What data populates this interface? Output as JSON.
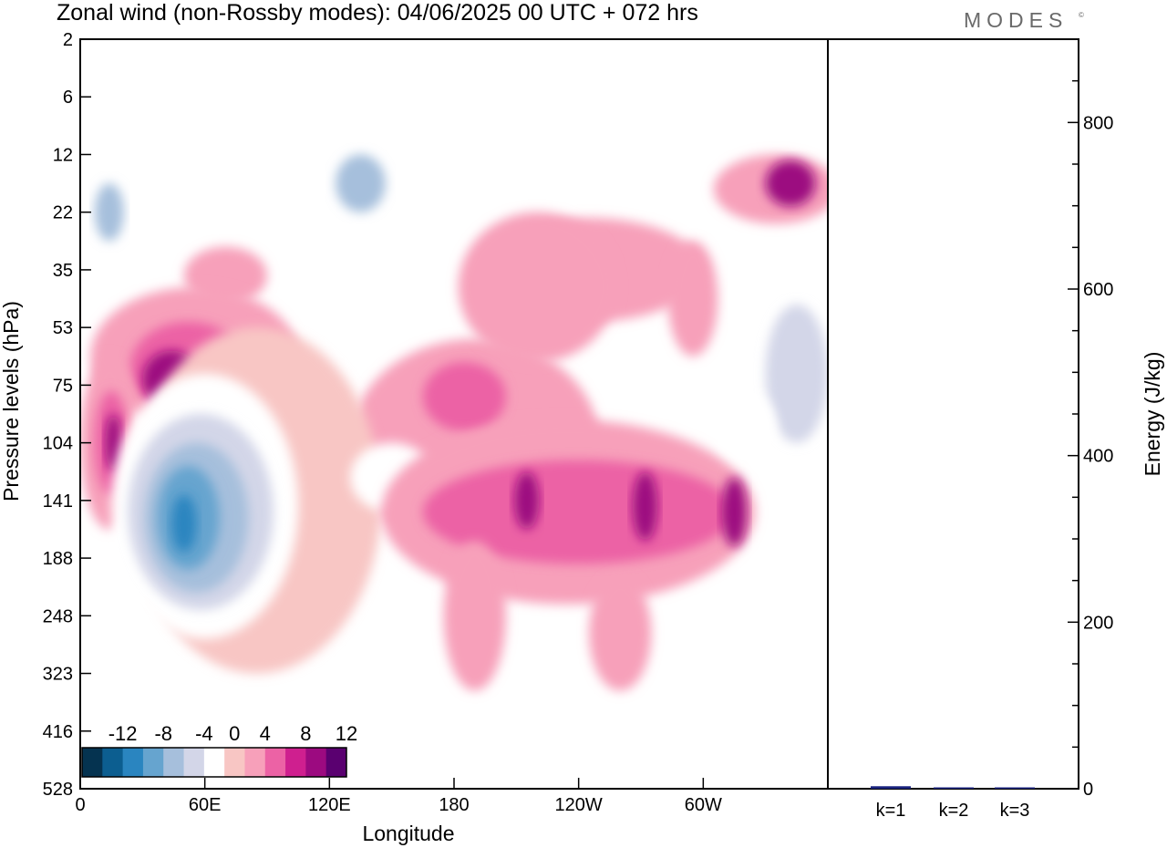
{
  "title": "Zonal wind (non-Rossby modes):  04/06/2025  00 UTC  + 072 hrs",
  "brand": "MODES",
  "brand_mark": "©",
  "chart_data": [
    {
      "type": "heatmap",
      "title": "Zonal wind (non-Rossby modes):  04/06/2025  00 UTC  + 072 hrs",
      "xlabel": "Longitude",
      "ylabel": "Pressure levels (hPa)",
      "x_ticks": [
        "0",
        "60E",
        "120E",
        "180",
        "120W",
        "60W"
      ],
      "x_tick_degrees": [
        0,
        60,
        120,
        180,
        240,
        300
      ],
      "xlim": [
        0,
        360
      ],
      "y_ticks": [
        "2",
        "6",
        "12",
        "22",
        "35",
        "53",
        "75",
        "104",
        "141",
        "188",
        "248",
        "323",
        "416",
        "528"
      ],
      "colorbar": {
        "labels": [
          "-12",
          "-8",
          "-4",
          "0",
          "4",
          "8",
          "12"
        ],
        "label_values": [
          -12,
          -8,
          -4,
          0,
          4,
          8,
          12
        ],
        "levels": [
          -14,
          -12,
          -10,
          -8,
          -6,
          -4,
          -2,
          2,
          4,
          6,
          8,
          10,
          12,
          14
        ],
        "colors": [
          "#053350",
          "#0c5e90",
          "#2a85c0",
          "#66a4cf",
          "#a6bfdc",
          "#d3d6e8",
          "#ffffff",
          "#f8c6c4",
          "#f7a0ba",
          "#ec62a5",
          "#cf1f8f",
          "#9c0a80",
          "#5a0070"
        ]
      },
      "regions": [
        {
          "lon": 15,
          "lev": 2.9,
          "rx": 12,
          "ry": 0.9,
          "value": -4
        },
        {
          "lon": 14,
          "lev": 3.0,
          "rx": 7,
          "ry": 0.5,
          "value": -8
        },
        {
          "lon": 55,
          "lev": 2.2,
          "rx": 10,
          "ry": 0.6,
          "value": -4
        },
        {
          "lon": 135,
          "lev": 2.5,
          "rx": 25,
          "ry": 0.9,
          "value": -4
        },
        {
          "lon": 135,
          "lev": 2.5,
          "rx": 12,
          "ry": 0.5,
          "value": -8
        },
        {
          "lon": 237,
          "lev": 2.6,
          "rx": 20,
          "ry": 0.7,
          "value": -4
        },
        {
          "lon": 335,
          "lev": 6.0,
          "rx": 40,
          "ry": 1.6,
          "value": -4
        },
        {
          "lon": 345,
          "lev": 5.8,
          "rx": 15,
          "ry": 1.2,
          "value": -6
        },
        {
          "lon": 190,
          "lev": 7.0,
          "rx": 60,
          "ry": 1.8,
          "value": 2
        },
        {
          "lon": 185,
          "lev": 6.2,
          "rx": 20,
          "ry": 0.6,
          "value": 4
        },
        {
          "lon": 245,
          "lev": 4.0,
          "rx": 55,
          "ry": 0.9,
          "value": 2
        },
        {
          "lon": 335,
          "lev": 2.6,
          "rx": 30,
          "ry": 0.6,
          "value": 2
        },
        {
          "lon": 342,
          "lev": 2.5,
          "rx": 12,
          "ry": 0.4,
          "value": 8
        },
        {
          "lon": 70,
          "lev": 4.1,
          "rx": 20,
          "ry": 0.5,
          "value": 2
        },
        {
          "lon": 220,
          "lev": 4.3,
          "rx": 38,
          "ry": 1.3,
          "value": 2
        },
        {
          "lon": 295,
          "lev": 4.5,
          "rx": 12,
          "ry": 1.0,
          "value": 2
        },
        {
          "lon": 55,
          "lev": 5.5,
          "rx": 50,
          "ry": 1.2,
          "value": 2
        },
        {
          "lon": 52,
          "lev": 5.7,
          "rx": 28,
          "ry": 0.8,
          "value": 4
        },
        {
          "lon": 44,
          "lev": 5.9,
          "rx": 14,
          "ry": 0.5,
          "value": 8
        },
        {
          "lon": 14,
          "lev": 7.0,
          "rx": 14,
          "ry": 1.5,
          "value": 2
        },
        {
          "lon": 15,
          "lev": 7.0,
          "rx": 8,
          "ry": 0.9,
          "value": 4
        },
        {
          "lon": 16,
          "lev": 7.0,
          "rx": 4,
          "ry": 0.5,
          "value": 8
        },
        {
          "lon": 85,
          "lev": 8.0,
          "rx": 60,
          "ry": 3.0,
          "value": -2
        },
        {
          "lon": 60,
          "lev": 8.1,
          "rx": 45,
          "ry": 2.3,
          "value": -4
        },
        {
          "lon": 58,
          "lev": 8.2,
          "rx": 35,
          "ry": 1.7,
          "value": -6
        },
        {
          "lon": 56,
          "lev": 8.3,
          "rx": 25,
          "ry": 1.3,
          "value": -8
        },
        {
          "lon": 52,
          "lev": 8.3,
          "rx": 15,
          "ry": 0.9,
          "value": -10
        },
        {
          "lon": 50,
          "lev": 8.4,
          "rx": 6,
          "ry": 0.5,
          "value": -12
        },
        {
          "lon": 150,
          "lev": 7.6,
          "rx": 20,
          "ry": 0.6,
          "value": -4
        },
        {
          "lon": 235,
          "lev": 8.2,
          "rx": 90,
          "ry": 1.6,
          "value": 2
        },
        {
          "lon": 240,
          "lev": 8.2,
          "rx": 75,
          "ry": 0.9,
          "value": 4
        },
        {
          "lon": 215,
          "lev": 8.0,
          "rx": 6,
          "ry": 0.5,
          "value": 8
        },
        {
          "lon": 272,
          "lev": 8.1,
          "rx": 6,
          "ry": 0.6,
          "value": 8
        },
        {
          "lon": 315,
          "lev": 8.2,
          "rx": 6,
          "ry": 0.6,
          "value": 8
        },
        {
          "lon": 320,
          "lev": 6.7,
          "rx": 15,
          "ry": 0.6,
          "value": -4
        },
        {
          "lon": 190,
          "lev": 10.0,
          "rx": 15,
          "ry": 1.3,
          "value": 2
        },
        {
          "lon": 260,
          "lev": 10.3,
          "rx": 15,
          "ry": 1.0,
          "value": 2
        }
      ],
      "energy_panel": {
        "ylabel": "Energy (J/kg)",
        "y_ticks": [
          "0",
          "200",
          "400",
          "600",
          "800"
        ],
        "y_tick_values": [
          0,
          200,
          400,
          600,
          800
        ],
        "ylim": [
          0,
          900
        ],
        "categories": [
          "k=1",
          "k=2",
          "k=3"
        ],
        "values": [
          3,
          1.5,
          1
        ],
        "bar_color": "#1a237e"
      }
    }
  ]
}
